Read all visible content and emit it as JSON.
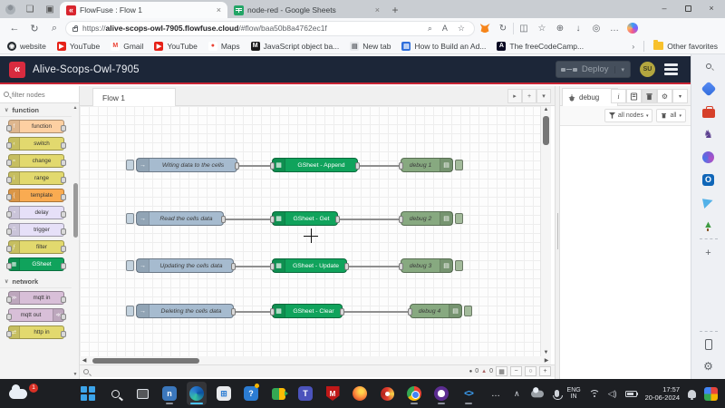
{
  "colors": {
    "flowfuse_red": "#d92b3f",
    "header_navy": "#1c2638",
    "accent_red_line": "#c92434",
    "inject_node": "#a6bbcf",
    "gsheet_node": "#10a35c",
    "debug_node": "#87a980",
    "taskbar_bg": "#1d1f23",
    "edge_active_underline": "#4cc2ff"
  },
  "browser": {
    "tabs": [
      {
        "title": "FlowFuse : Flow 1",
        "icon": "flowfuse-favicon",
        "close": "×"
      },
      {
        "title": "node-red - Google Sheets",
        "icon": "sheets-favicon",
        "close": "×"
      }
    ],
    "new_tab_glyph": "+",
    "window_controls": {
      "minimize": "–",
      "close": "×"
    },
    "nav": {
      "back": "←",
      "refresh": "↻",
      "search": "⌕"
    },
    "url": {
      "scheme": "https://",
      "domain": "alive-scops-owl-7905.flowfuse.cloud",
      "path": "/#flow/baa50b8a4762ec1f"
    },
    "pill_icons": {
      "zoom": "⌕",
      "read_aloud": "A",
      "favorite": "☆"
    },
    "toolbar_icons": {
      "split": "◫",
      "favorites": "☆",
      "collections": "⊕",
      "downloads": "↓",
      "essentials": "◎",
      "more": "…"
    },
    "bookmarks": [
      {
        "label": "website",
        "icon": "github",
        "glyph": "◉",
        "bg": "#24292e"
      },
      {
        "label": "YouTube",
        "icon": "youtube",
        "glyph": "▶",
        "bg": "#e62117"
      },
      {
        "label": "Gmail",
        "icon": "gmail",
        "glyph": "M",
        "bg": "#ffffff",
        "fg": "#ea4335"
      },
      {
        "label": "YouTube",
        "icon": "youtube",
        "glyph": "▶",
        "bg": "#e62117"
      },
      {
        "label": "Maps",
        "icon": "maps",
        "glyph": "●",
        "bg": "#ffffff",
        "fg": "#ea4335"
      },
      {
        "label": "JavaScript object ba...",
        "icon": "medium",
        "glyph": "M",
        "bg": "#1a1a1a"
      },
      {
        "label": "New tab",
        "icon": "page",
        "glyph": "▤",
        "bg": "#e8eaed",
        "fg": "#5f6368"
      },
      {
        "label": "How to Build an Ad...",
        "icon": "blue-doc",
        "glyph": "▤",
        "bg": "#2f6fdb"
      },
      {
        "label": "The freeCodeCamp...",
        "icon": "freecodecamp",
        "glyph": "A",
        "bg": "#0a0a23"
      }
    ],
    "bookmarks_overflow": "›",
    "other_favorites": "Other favorites"
  },
  "editor": {
    "header": {
      "title": "Alive-Scops-Owl-7905",
      "deploy": "Deploy",
      "deploy_caret": "▾",
      "avatar": "SU"
    },
    "palette": {
      "search_placeholder": "filter nodes",
      "categories": [
        {
          "label": "function",
          "chevron": "∨",
          "items": [
            {
              "label": "function",
              "color": "#fdd0a2",
              "glyph": "f"
            },
            {
              "label": "switch",
              "color": "#e2d96e",
              "glyph": "‹"
            },
            {
              "label": "change",
              "color": "#e2d96e",
              "glyph": "≈"
            },
            {
              "label": "range",
              "color": "#e2d96e",
              "glyph": "i"
            },
            {
              "label": "template",
              "color": "#f9ab51",
              "glyph": "{"
            },
            {
              "label": "delay",
              "color": "#e6e0f8",
              "glyph": "◔"
            },
            {
              "label": "trigger",
              "color": "#e6e0f8",
              "glyph": "⎍"
            },
            {
              "label": "filter",
              "color": "#e2d96e",
              "glyph": "ƒ"
            },
            {
              "label": "GSheet",
              "color": "#10a35c",
              "text_color": "#ffffff",
              "glyph": "▦"
            }
          ]
        },
        {
          "label": "network",
          "chevron": "∨",
          "items": [
            {
              "label": "mqtt in",
              "color": "#d8bfd8",
              "glyph": "≫"
            },
            {
              "label": "mqtt out",
              "color": "#d8bfd8",
              "glyph": "≪",
              "icon_side": "right"
            },
            {
              "label": "http in",
              "color": "#e2d96e",
              "glyph": "⇄"
            }
          ]
        }
      ]
    },
    "workspace_tab": "Flow 1",
    "workspace_buttons": {
      "expand": "▸",
      "add": "+",
      "list": "▾"
    },
    "flows": [
      {
        "inject": "Witing data to the cells",
        "gsheet": "GSheet - Append",
        "debug": "debug 1"
      },
      {
        "inject": "Read the cells data",
        "gsheet": "GSheet - Get",
        "debug": "debug 2"
      },
      {
        "inject": "Updating the cells data",
        "gsheet": "GSheet - Update",
        "debug": "debug 3"
      },
      {
        "inject": "Deleting the cells data",
        "gsheet": "GSheet - Clear",
        "debug": "debug 4"
      }
    ],
    "node_icons": {
      "inject": "→",
      "gsheet": "▦",
      "debug": "▤"
    },
    "debug_panel": {
      "tab": "debug",
      "info": "i",
      "filter": "all nodes",
      "clear": "all",
      "caret": "▾"
    },
    "footer": {
      "errors": "0",
      "warnings": "0",
      "zoom_out": "−",
      "zoom_reset": "○",
      "zoom_in": "+",
      "warning_glyph": "▲",
      "error_glyph": "●",
      "map_glyph": "▦"
    }
  },
  "edge_sidebar": {
    "icons": [
      {
        "name": "search-icon",
        "kind": "mag"
      },
      {
        "name": "shopping-tag-icon",
        "kind": "tag"
      },
      {
        "name": "toolbox-icon",
        "kind": "toolbox"
      },
      {
        "name": "games-icon",
        "kind": "chess",
        "glyph": "♞"
      },
      {
        "name": "microsoft-365-icon",
        "kind": "m365"
      },
      {
        "name": "outlook-icon",
        "kind": "outlook",
        "glyph": "O"
      },
      {
        "name": "drop-icon",
        "kind": "plane"
      },
      {
        "name": "tree-icon",
        "kind": "tree",
        "glyph": "▲"
      },
      {
        "name": "divider",
        "kind": "div"
      },
      {
        "name": "add-icon",
        "kind": "glyph",
        "glyph": "+",
        "color": "#5f6368"
      }
    ],
    "bottom": [
      {
        "name": "phone-link-icon",
        "kind": "phone"
      },
      {
        "name": "settings-gear-icon",
        "kind": "gear",
        "glyph": "⚙"
      }
    ]
  },
  "taskbar": {
    "weather_badge": "1",
    "apps": [
      {
        "name": "start",
        "kind": "start"
      },
      {
        "name": "search",
        "kind": "mag"
      },
      {
        "name": "task-view",
        "kind": "taskview"
      },
      {
        "name": "node-app",
        "kind": "tile",
        "bg": "#3b77bc",
        "glyph": "n",
        "running": true
      },
      {
        "name": "edge",
        "kind": "edge",
        "active": true
      },
      {
        "name": "microsoft-store",
        "kind": "tile",
        "bg": "#e8eaed",
        "fg": "#2b7cd3",
        "glyph": "⊞"
      },
      {
        "name": "help",
        "kind": "tile",
        "bg": "#2b7cd3",
        "glyph": "?",
        "helpdot": true
      },
      {
        "name": "google-meet",
        "kind": "gmeet"
      },
      {
        "name": "teams",
        "kind": "tile",
        "bg": "#4b53bc",
        "glyph": "T"
      },
      {
        "name": "mcafee",
        "kind": "shield",
        "glyph": "M"
      },
      {
        "name": "firefox",
        "kind": "firefox"
      },
      {
        "name": "pinwheel-app",
        "kind": "pinwheel"
      },
      {
        "name": "chrome",
        "kind": "chrome",
        "running": true
      },
      {
        "name": "github-desktop",
        "kind": "github",
        "running": true
      },
      {
        "name": "vscode",
        "kind": "vsc",
        "glyph": "<>",
        "running": true
      },
      {
        "name": "more-apps",
        "kind": "glyph",
        "glyph": "…",
        "color": "#e8eaed"
      }
    ],
    "tray": {
      "chevron": "∧",
      "lang_line1": "ENG",
      "lang_line2": "IN",
      "time": "17:57",
      "date": "20-06-2024"
    }
  }
}
